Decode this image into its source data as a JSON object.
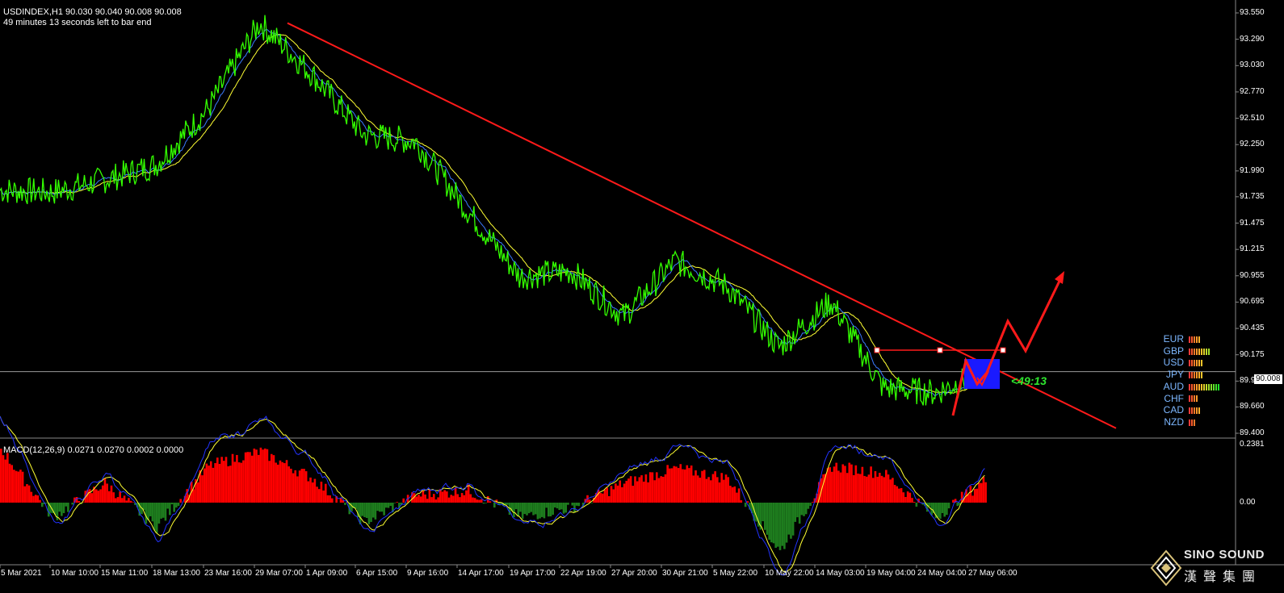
{
  "header": {
    "symbol_line": "USDINDEX,H1  90.030 90.040 90.008 90.008",
    "timer_line": "49 minutes 13 seconds left to bar end"
  },
  "macd_label": "MACD(12,26,9) 0.0271 0.0270 0.0002 0.0000",
  "current_price_tag": "90.008",
  "countdown": "<49:13",
  "price_axis_labels": [
    "93.550",
    "93.290",
    "93.030",
    "92.770",
    "92.510",
    "92.250",
    "91.990",
    "91.735",
    "91.475",
    "91.215",
    "90.955",
    "90.695",
    "90.435",
    "90.175",
    "89.915",
    "89.660",
    "89.400"
  ],
  "macd_axis_labels": [
    "0.2381",
    "0.00"
  ],
  "time_axis_labels": [
    "5 Mar 2021",
    "10 Mar 10:00",
    "15 Mar 11:00",
    "18 Mar 13:00",
    "23 Mar 16:00",
    "29 Mar 07:00",
    "1 Apr 09:00",
    "6 Apr 15:00",
    "9 Apr 16:00",
    "14 Apr 17:00",
    "19 Apr 17:00",
    "22 Apr 19:00",
    "27 Apr 20:00",
    "30 Apr 21:00",
    "5 May 22:00",
    "10 May 22:00",
    "14 May 03:00",
    "19 May 04:00",
    "24 May 04:00",
    "27 May 06:00"
  ],
  "currency_strength": [
    {
      "code": "EUR",
      "bars": 5
    },
    {
      "code": "GBP",
      "bars": 9
    },
    {
      "code": "USD",
      "bars": 6
    },
    {
      "code": "JPY",
      "bars": 6
    },
    {
      "code": "AUD",
      "bars": 13
    },
    {
      "code": "CHF",
      "bars": 4
    },
    {
      "code": "CAD",
      "bars": 5
    },
    {
      "code": "NZD",
      "bars": 3
    }
  ],
  "logo": {
    "title": "SINO SOUND",
    "subtitle": "漢聲集團",
    "icon": "diamond-logo-icon"
  },
  "colors": {
    "price": "#33ff00",
    "fast_ma": "#3b7bff",
    "slow_ma": "#ffff33",
    "trendline": "#ff1a1a",
    "macd_pos": "#ff0000",
    "macd_neg": "#1e7d1e",
    "signal": "#ffff33",
    "macd_line": "#2233ff"
  },
  "chart_data": {
    "type": "line",
    "title": "USDINDEX,H1",
    "xlabel": "",
    "ylabel": "",
    "ylim": [
      89.4,
      93.55
    ],
    "x": [
      "5 Mar 2021",
      "10 Mar 10:00",
      "15 Mar 11:00",
      "18 Mar 13:00",
      "23 Mar 16:00",
      "29 Mar 07:00",
      "1 Apr 09:00",
      "6 Apr 15:00",
      "9 Apr 16:00",
      "14 Apr 17:00",
      "19 Apr 17:00",
      "22 Apr 19:00",
      "27 Apr 20:00",
      "30 Apr 21:00",
      "5 May 22:00",
      "10 May 22:00",
      "14 May 03:00",
      "19 May 04:00",
      "24 May 04:00",
      "27 May 06:00"
    ],
    "series": [
      {
        "name": "USDINDEX close",
        "values": [
          91.8,
          91.78,
          91.9,
          92.05,
          92.6,
          93.45,
          92.95,
          92.35,
          92.28,
          91.6,
          90.95,
          91.0,
          90.55,
          91.1,
          90.85,
          90.25,
          90.7,
          89.85,
          89.8,
          90.01
        ]
      }
    ],
    "annotations": {
      "current_price": 90.008,
      "resistance": 90.22,
      "trendline_start": 93.45,
      "trendline_end": 89.45
    },
    "macd": {
      "zero": 0.0,
      "max": 0.2381,
      "values": [
        0.22,
        -0.06,
        0.08,
        -0.1,
        0.15,
        0.21,
        0.1,
        -0.08,
        0.03,
        0.05,
        -0.06,
        -0.02,
        0.08,
        0.14,
        0.1,
        -0.2,
        0.15,
        0.12,
        -0.06,
        0.1
      ]
    },
    "grid": false,
    "legend": "none"
  }
}
